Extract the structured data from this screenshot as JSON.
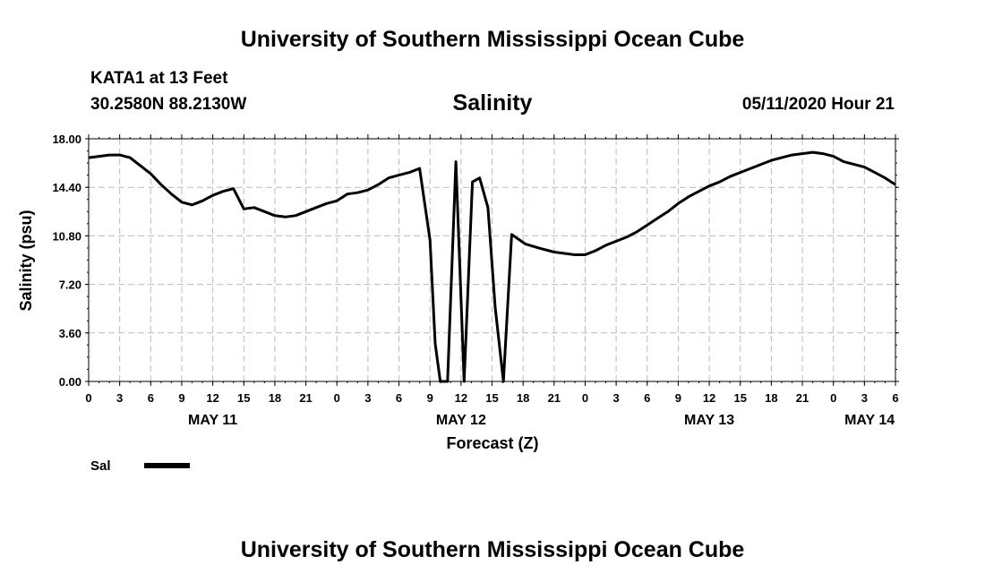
{
  "header": {
    "title": "University of Southern Mississippi Ocean Cube",
    "station": "KATA1 at 13 Feet",
    "coordinates": "30.2580N 88.2130W",
    "chart_title": "Salinity",
    "datetime": "05/11/2020 Hour 21"
  },
  "footer": {
    "title": "University of Southern Mississippi Ocean Cube"
  },
  "colors": {
    "line": "#000000",
    "grid": "#bbbbbb",
    "background": "#ffffff"
  },
  "chart_data": {
    "type": "line",
    "title": "Salinity",
    "xlabel": "Forecast (Z)",
    "ylabel": "Salinity (psu)",
    "ylim": [
      0,
      18
    ],
    "xlim": [
      0,
      78
    ],
    "x_unit": "hours from May 11 00Z",
    "y_ticks": [
      "0.00",
      "3.60",
      "7.20",
      "10.80",
      "14.40",
      "18.00"
    ],
    "x_ticks": [
      {
        "x": 0,
        "label": "0"
      },
      {
        "x": 3,
        "label": "3"
      },
      {
        "x": 6,
        "label": "6"
      },
      {
        "x": 9,
        "label": "9"
      },
      {
        "x": 12,
        "label": "12"
      },
      {
        "x": 15,
        "label": "15"
      },
      {
        "x": 18,
        "label": "18"
      },
      {
        "x": 21,
        "label": "21"
      },
      {
        "x": 24,
        "label": "0"
      },
      {
        "x": 27,
        "label": "3"
      },
      {
        "x": 30,
        "label": "6"
      },
      {
        "x": 33,
        "label": "9"
      },
      {
        "x": 36,
        "label": "12"
      },
      {
        "x": 39,
        "label": "15"
      },
      {
        "x": 42,
        "label": "18"
      },
      {
        "x": 45,
        "label": "21"
      },
      {
        "x": 48,
        "label": "0"
      },
      {
        "x": 51,
        "label": "3"
      },
      {
        "x": 54,
        "label": "6"
      },
      {
        "x": 57,
        "label": "9"
      },
      {
        "x": 60,
        "label": "12"
      },
      {
        "x": 63,
        "label": "15"
      },
      {
        "x": 66,
        "label": "18"
      },
      {
        "x": 69,
        "label": "21"
      },
      {
        "x": 72,
        "label": "0"
      },
      {
        "x": 75,
        "label": "3"
      },
      {
        "x": 78,
        "label": "6"
      }
    ],
    "day_labels": [
      {
        "x": 12,
        "label": "MAY 11"
      },
      {
        "x": 36,
        "label": "MAY 12"
      },
      {
        "x": 60,
        "label": "MAY 13"
      },
      {
        "x": 75.5,
        "label": "MAY 14"
      }
    ],
    "legend": [
      {
        "name": "Sal"
      }
    ],
    "series": [
      {
        "name": "Sal",
        "x": [
          0,
          1,
          2,
          3,
          4,
          5,
          6,
          7,
          8,
          9,
          10,
          11,
          12,
          13,
          14,
          15,
          16,
          17,
          18,
          19,
          20,
          21,
          22,
          23,
          24,
          25,
          26,
          27,
          28,
          29,
          30,
          31,
          32,
          33,
          33.5,
          34,
          34.7,
          35.5,
          36.3,
          37.1,
          37.8,
          38.6,
          39.3,
          40.1,
          40.9,
          42.2,
          43.5,
          45,
          47,
          48,
          49,
          50,
          51,
          52,
          53,
          54,
          55,
          56,
          57,
          58,
          59,
          60,
          61,
          62,
          63,
          64,
          65,
          66,
          67,
          68,
          69,
          70,
          71,
          72,
          73,
          74,
          75,
          76,
          77,
          78
        ],
        "values": [
          16.6,
          16.7,
          16.8,
          16.8,
          16.6,
          16.0,
          15.4,
          14.6,
          13.9,
          13.3,
          13.1,
          13.4,
          13.8,
          14.1,
          14.3,
          12.8,
          12.9,
          12.6,
          12.3,
          12.2,
          12.3,
          12.6,
          12.9,
          13.2,
          13.4,
          13.9,
          14.0,
          14.2,
          14.6,
          15.1,
          15.3,
          15.5,
          15.8,
          10.5,
          2.8,
          0,
          0,
          16.3,
          0,
          14.8,
          15.1,
          12.9,
          5.5,
          0,
          10.9,
          10.2,
          9.9,
          9.6,
          9.4,
          9.4,
          9.7,
          10.1,
          10.4,
          10.7,
          11.1,
          11.6,
          12.1,
          12.6,
          13.2,
          13.7,
          14.1,
          14.5,
          14.8,
          15.2,
          15.5,
          15.8,
          16.1,
          16.4,
          16.6,
          16.8,
          16.9,
          17.0,
          16.9,
          16.7,
          16.3,
          16.1,
          15.9,
          15.5,
          15.1,
          14.6
        ]
      }
    ]
  }
}
